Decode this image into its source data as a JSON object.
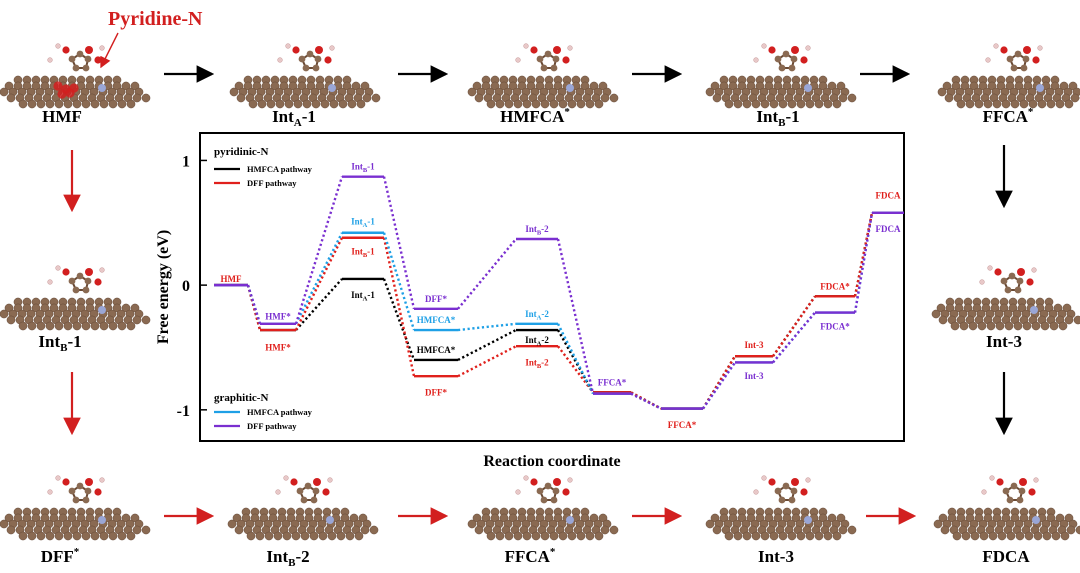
{
  "colors": {
    "black": "#000000",
    "red": "#e0201c",
    "blue": "#1ea0e6",
    "purple": "#7a2fd0",
    "atom_c": "#8a6a52",
    "atom_o": "#d21f1f",
    "atom_h": "#e8c8c8",
    "atom_n": "#9aa6d6"
  },
  "annotation": {
    "pyridine_n": "Pyridine-N"
  },
  "molecules": {
    "top": [
      "HMF",
      "Int_A-1",
      "HMFCA*",
      "Int_B-1",
      "FFCA*"
    ],
    "left_mid": "Int_B-1",
    "right_mid": "Int-3",
    "bottom": [
      "DFF*",
      "Int_B-2",
      "FFCA*",
      "Int-3",
      "FDCA"
    ]
  },
  "chart_data": {
    "type": "line",
    "xlabel": "Reaction coordinate",
    "ylabel": "Free energy (eV)",
    "ylim": [
      -1.25,
      1.22
    ],
    "yticks": [
      "1",
      "0",
      "-1"
    ],
    "legend": {
      "group1_title": "pyridinic-N",
      "group2_title": "graphitic-N",
      "entries": [
        {
          "group": "pyridinic-N",
          "name": "HMFCA pathway",
          "color": "#000000"
        },
        {
          "group": "pyridinic-N",
          "name": "DFF pathway",
          "color": "#e0201c"
        },
        {
          "group": "graphitic-N",
          "name": "HMFCA pathway",
          "color": "#1ea0e6"
        },
        {
          "group": "graphitic-N",
          "name": "DFF pathway",
          "color": "#7a2fd0"
        }
      ]
    },
    "positions": 10,
    "series": [
      {
        "name": "pyridinic-N HMFCA pathway",
        "color": "#000000",
        "points": [
          [
            0,
            0.0
          ],
          [
            1,
            -0.36
          ],
          [
            2,
            0.05
          ],
          [
            3,
            -0.6
          ],
          [
            4,
            -0.36
          ],
          [
            5,
            -0.86
          ],
          [
            6,
            -0.99
          ],
          [
            7,
            -0.57
          ],
          [
            8,
            -0.09
          ],
          [
            9,
            0.58
          ]
        ]
      },
      {
        "name": "pyridinic-N DFF pathway",
        "color": "#e0201c",
        "points": [
          [
            0,
            0.0
          ],
          [
            1,
            -0.36
          ],
          [
            2,
            0.38
          ],
          [
            3,
            -0.73
          ],
          [
            4,
            -0.49
          ],
          [
            5,
            -0.86
          ],
          [
            6,
            -0.99
          ],
          [
            7,
            -0.57
          ],
          [
            8,
            -0.09
          ],
          [
            9,
            0.58
          ]
        ]
      },
      {
        "name": "graphitic-N HMFCA pathway",
        "color": "#1ea0e6",
        "points": [
          [
            0,
            0.0
          ],
          [
            1,
            -0.31
          ],
          [
            2,
            0.42
          ],
          [
            3,
            -0.36
          ],
          [
            4,
            -0.31
          ],
          [
            5,
            -0.87
          ],
          [
            6,
            -0.99
          ],
          [
            7,
            -0.62
          ],
          [
            8,
            -0.22
          ],
          [
            9,
            0.58
          ]
        ]
      },
      {
        "name": "graphitic-N DFF pathway",
        "color": "#7a2fd0",
        "points": [
          [
            0,
            0.0
          ],
          [
            1,
            -0.31
          ],
          [
            2,
            0.87
          ],
          [
            3,
            -0.19
          ],
          [
            4,
            0.37
          ],
          [
            5,
            -0.87
          ],
          [
            6,
            -0.99
          ],
          [
            7,
            -0.62
          ],
          [
            8,
            -0.22
          ],
          [
            9,
            0.58
          ]
        ]
      }
    ],
    "labels": [
      {
        "text": "HMF",
        "sub": "",
        "x": 0,
        "y": 0.05,
        "color": "#e0201c"
      },
      {
        "text": "HMF*",
        "sub": "",
        "x": 1,
        "y": -0.25,
        "color": "#7a2fd0"
      },
      {
        "text": "HMF*",
        "sub": "",
        "x": 1,
        "y": -0.5,
        "color": "#e0201c"
      },
      {
        "text": "Int",
        "sub": "B",
        "tail": "-1",
        "x": 2,
        "y": 0.95,
        "color": "#7a2fd0"
      },
      {
        "text": "Int",
        "sub": "A",
        "tail": "-1",
        "x": 2,
        "y": 0.51,
        "color": "#1ea0e6"
      },
      {
        "text": "Int",
        "sub": "B",
        "tail": "-1",
        "x": 2,
        "y": 0.27,
        "color": "#e0201c"
      },
      {
        "text": "Int",
        "sub": "A",
        "tail": "-1",
        "x": 2,
        "y": -0.08,
        "color": "#000000"
      },
      {
        "text": "DFF*",
        "sub": "",
        "x": 3,
        "y": -0.11,
        "color": "#7a2fd0"
      },
      {
        "text": "HMFCA*",
        "sub": "",
        "x": 3,
        "y": -0.28,
        "color": "#1ea0e6"
      },
      {
        "text": "HMFCA*",
        "sub": "",
        "x": 3,
        "y": -0.52,
        "color": "#000000"
      },
      {
        "text": "DFF*",
        "sub": "",
        "x": 3,
        "y": -0.86,
        "color": "#e0201c"
      },
      {
        "text": "Int",
        "sub": "B",
        "tail": "-2",
        "x": 4,
        "y": 0.45,
        "color": "#7a2fd0"
      },
      {
        "text": "Int",
        "sub": "A",
        "tail": "-2",
        "x": 4,
        "y": -0.23,
        "color": "#1ea0e6"
      },
      {
        "text": "Int",
        "sub": "A",
        "tail": "-2",
        "x": 4,
        "y": -0.44,
        "color": "#000000"
      },
      {
        "text": "Int",
        "sub": "B",
        "tail": "-2",
        "x": 4,
        "y": -0.62,
        "color": "#e0201c"
      },
      {
        "text": "FFCA*",
        "sub": "",
        "x": 5,
        "y": -0.78,
        "color": "#7a2fd0"
      },
      {
        "text": "FFCA*",
        "sub": "",
        "x": 6,
        "y": -1.12,
        "color": "#e0201c"
      },
      {
        "text": "Int-3",
        "sub": "",
        "x": 7,
        "y": -0.48,
        "color": "#e0201c"
      },
      {
        "text": "Int-3",
        "sub": "",
        "x": 7,
        "y": -0.73,
        "color": "#7a2fd0"
      },
      {
        "text": "FDCA*",
        "sub": "",
        "x": 8,
        "y": -0.01,
        "color": "#e0201c"
      },
      {
        "text": "FDCA*",
        "sub": "",
        "x": 8,
        "y": -0.33,
        "color": "#7a2fd0"
      },
      {
        "text": "FDCA",
        "sub": "",
        "x": 9,
        "y": 0.72,
        "color": "#e0201c"
      },
      {
        "text": "FDCA",
        "sub": "",
        "x": 9,
        "y": 0.45,
        "color": "#7a2fd0"
      }
    ]
  }
}
